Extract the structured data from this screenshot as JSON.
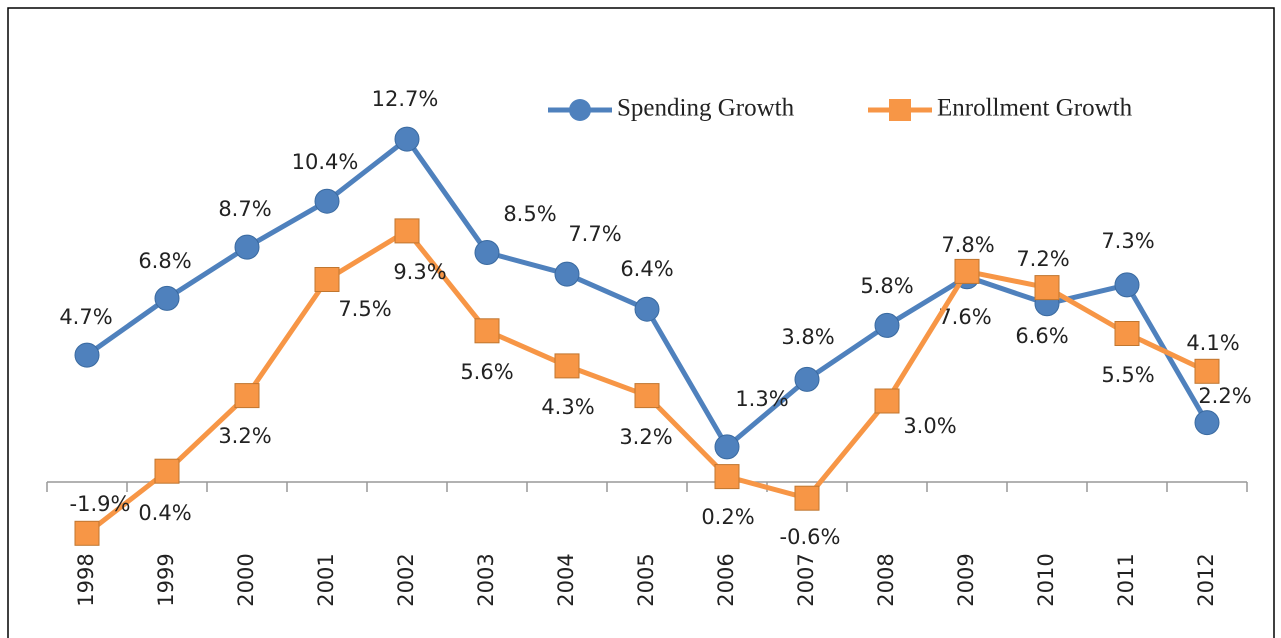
{
  "chart_data": {
    "type": "line",
    "categories": [
      "1998",
      "1999",
      "2000",
      "2001",
      "2002",
      "2003",
      "2004",
      "2005",
      "2006",
      "2007",
      "2008",
      "2009",
      "2010",
      "2011",
      "2012"
    ],
    "series": [
      {
        "name": "Spending Growth",
        "color": "#4f81bd",
        "values": [
          4.7,
          6.8,
          8.7,
          10.4,
          12.7,
          8.5,
          7.7,
          6.4,
          1.3,
          3.8,
          5.8,
          7.6,
          6.6,
          7.3,
          2.2
        ],
        "value_labels": [
          "4.7%",
          "6.8%",
          "8.7%",
          "10.4%",
          "12.7%",
          "8.5%",
          "7.7%",
          "6.4%",
          "1.3%",
          "3.8%",
          "5.8%",
          "7.6%",
          "6.6%",
          "7.3%",
          "2.2%"
        ]
      },
      {
        "name": "Enrollment Growth",
        "color": "#f79646",
        "values": [
          -1.9,
          0.4,
          3.2,
          7.5,
          9.3,
          5.6,
          4.3,
          3.2,
          0.2,
          -0.6,
          3.0,
          7.8,
          7.2,
          5.5,
          4.1
        ],
        "value_labels": [
          "-1.9%",
          "0.4%",
          "3.2%",
          "7.5%",
          "9.3%",
          "5.6%",
          "4.3%",
          "3.2%",
          "0.2%",
          "-0.6%",
          "3.0%",
          "7.8%",
          "7.2%",
          "5.5%",
          "4.1%"
        ]
      }
    ],
    "ylim": [
      -2.5,
      15
    ],
    "legend": "top-right"
  }
}
